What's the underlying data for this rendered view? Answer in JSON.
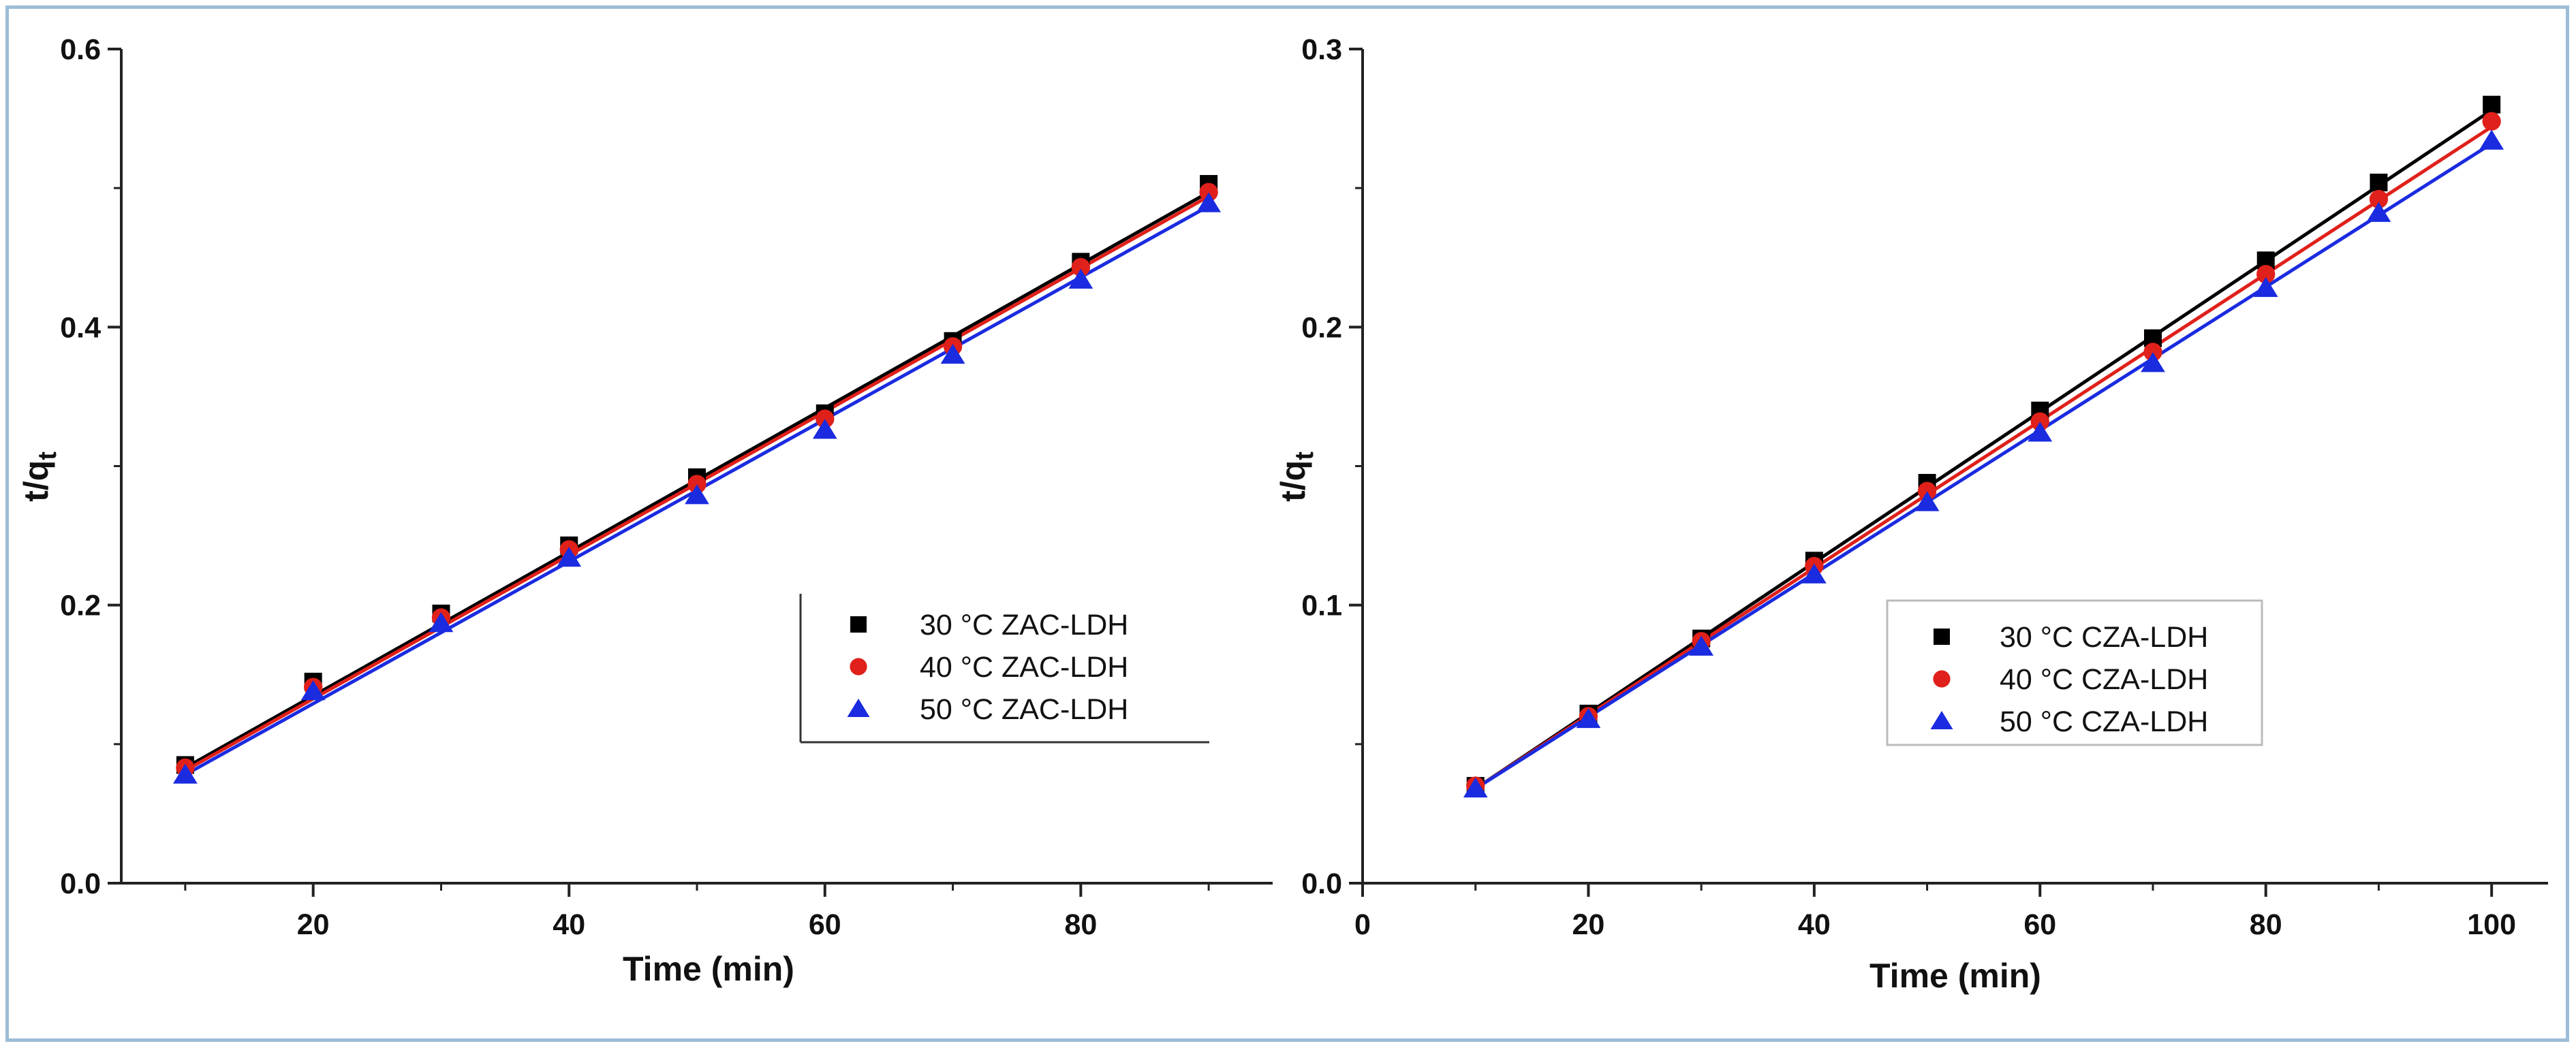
{
  "chart_data": [
    {
      "type": "scatter",
      "title": "",
      "xlabel": "Time (min)",
      "ylabel": "t/q",
      "ylabel_subscript": "t",
      "xlim": [
        5,
        95
      ],
      "ylim": [
        0,
        0.6
      ],
      "xticks": [
        20,
        40,
        60,
        80
      ],
      "yticks": [
        0.0,
        0.2,
        0.4,
        0.6
      ],
      "xtick_labels": [
        "20",
        "40",
        "60",
        "80"
      ],
      "ytick_labels": [
        "0.0",
        "0.2",
        "0.4",
        "0.6"
      ],
      "legend_position": "right",
      "legend_boxed": false,
      "x": [
        10,
        20,
        30,
        40,
        50,
        60,
        70,
        80,
        90
      ],
      "series": [
        {
          "name": "30 °C ZAC-LDH",
          "marker": "square",
          "color": "#000000",
          "values": [
            0.085,
            0.145,
            0.194,
            0.243,
            0.292,
            0.338,
            0.39,
            0.447,
            0.503
          ],
          "fit": [
            0.083,
            0.497
          ]
        },
        {
          "name": "40 °C ZAC-LDH",
          "marker": "circle",
          "color": "#e0201a",
          "values": [
            0.083,
            0.141,
            0.191,
            0.24,
            0.287,
            0.334,
            0.386,
            0.443,
            0.497
          ],
          "fit": [
            0.081,
            0.494
          ]
        },
        {
          "name": "50 °C ZAC-LDH",
          "marker": "triangle",
          "color": "#1a2be0",
          "values": [
            0.078,
            0.138,
            0.187,
            0.234,
            0.279,
            0.326,
            0.38,
            0.434,
            0.489
          ],
          "fit": [
            0.078,
            0.487
          ]
        }
      ]
    },
    {
      "type": "scatter",
      "title": "",
      "xlabel": "Time (min)",
      "ylabel": "t/q",
      "ylabel_subscript": "t",
      "xlim": [
        0,
        105
      ],
      "ylim": [
        0,
        0.3
      ],
      "xticks": [
        0,
        20,
        40,
        60,
        80,
        100
      ],
      "yticks": [
        0.0,
        0.1,
        0.2,
        0.3
      ],
      "xtick_labels": [
        "0",
        "20",
        "40",
        "60",
        "80",
        "100"
      ],
      "ytick_labels": [
        "0.0",
        "0.1",
        "0.2",
        "0.3"
      ],
      "legend_position": "center-right",
      "legend_boxed": true,
      "x": [
        10,
        20,
        30,
        40,
        50,
        60,
        70,
        80,
        90,
        100
      ],
      "series": [
        {
          "name": "30 °C CZA-LDH",
          "marker": "square",
          "color": "#000000",
          "values": [
            0.035,
            0.061,
            0.088,
            0.116,
            0.144,
            0.17,
            0.196,
            0.224,
            0.252,
            0.28
          ],
          "fit": [
            0.034,
            0.278
          ]
        },
        {
          "name": "40 °C CZA-LDH",
          "marker": "circle",
          "color": "#e0201a",
          "values": [
            0.035,
            0.06,
            0.087,
            0.114,
            0.141,
            0.166,
            0.191,
            0.219,
            0.246,
            0.274
          ],
          "fit": [
            0.034,
            0.272
          ]
        },
        {
          "name": "50 °C CZA-LDH",
          "marker": "triangle",
          "color": "#1a2be0",
          "values": [
            0.034,
            0.059,
            0.085,
            0.111,
            0.137,
            0.162,
            0.187,
            0.214,
            0.241,
            0.267
          ],
          "fit": [
            0.034,
            0.266
          ]
        }
      ]
    }
  ]
}
